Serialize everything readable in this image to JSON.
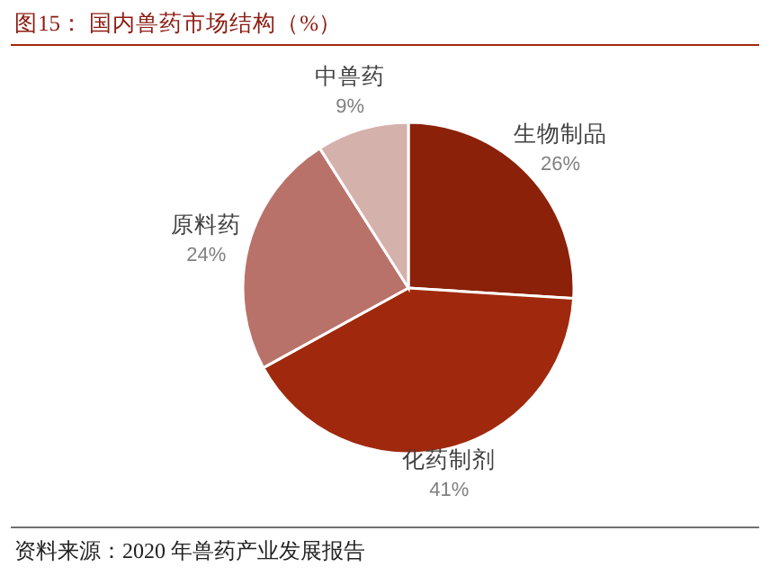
{
  "chart_data": {
    "type": "pie",
    "title": "图15：  国内兽药市场结构（%）",
    "categories": [
      "生物制品",
      "化药制剂",
      "原料药",
      "中兽药"
    ],
    "values": [
      26,
      41,
      24,
      9
    ],
    "value_labels": [
      "26%",
      "41%",
      "24%",
      "9%"
    ],
    "colors": [
      "#8b2108",
      "#a0290d",
      "#b9726a",
      "#d5b1ac"
    ],
    "annotations": [
      "资料来源：2020 年兽药产业发展报告"
    ]
  }
}
